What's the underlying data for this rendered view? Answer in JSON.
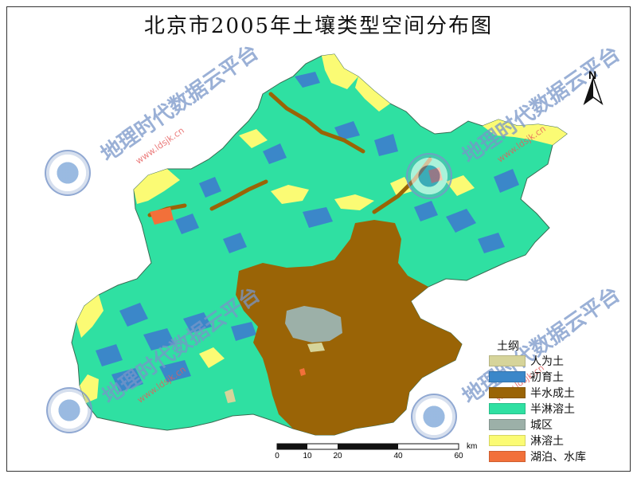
{
  "title": "北京市2005年土壤类型空间分布图",
  "north_label": "N",
  "legend": {
    "title": "土纲",
    "items": [
      {
        "label": "人为土",
        "color": "#d6d49a"
      },
      {
        "label": "初育土",
        "color": "#3b87c9"
      },
      {
        "label": "半水成土",
        "color": "#9a6406"
      },
      {
        "label": "半淋溶土",
        "color": "#2fe0a2"
      },
      {
        "label": "城区",
        "color": "#9cb0a8"
      },
      {
        "label": "淋溶土",
        "color": "#fbfb74"
      },
      {
        "label": "湖泊、水库",
        "color": "#f2703a"
      }
    ]
  },
  "scale": {
    "ticks": [
      "0",
      "10",
      "20",
      "40",
      "60"
    ],
    "unit": "km"
  },
  "watermark": {
    "text": "地理时代数据云平台",
    "url": "www.ldsjk.cn"
  },
  "colors": {
    "semi_leached": "#2fe0a2",
    "semi_hydromorphic": "#9a6406",
    "primitive": "#3b87c9",
    "leached": "#fbfb74",
    "urban": "#9cb0a8",
    "anthropogenic": "#d6d49a",
    "water": "#f2703a"
  }
}
